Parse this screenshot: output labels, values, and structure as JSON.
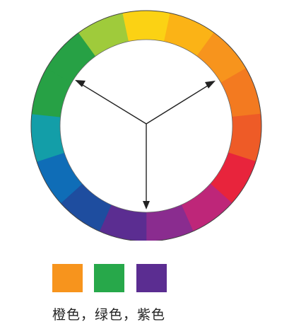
{
  "wheel": {
    "segments": [
      {
        "name": "yellow",
        "color": "#fbd214"
      },
      {
        "name": "yellow-orange",
        "color": "#fbb316"
      },
      {
        "name": "light-orange",
        "color": "#f7941d"
      },
      {
        "name": "orange",
        "color": "#f37a20"
      },
      {
        "name": "red-orange",
        "color": "#ee5b27"
      },
      {
        "name": "red",
        "color": "#e8243c"
      },
      {
        "name": "red-violet",
        "color": "#be2679"
      },
      {
        "name": "violet",
        "color": "#8a2c8f"
      },
      {
        "name": "purple",
        "color": "#5b2d91"
      },
      {
        "name": "blue-violet",
        "color": "#1e4d9f"
      },
      {
        "name": "blue",
        "color": "#0f6db7"
      },
      {
        "name": "blue-green",
        "color": "#139ea8"
      },
      {
        "name": "green",
        "color": "#27a145"
      },
      {
        "name": "green",
        "color": "#27a145"
      },
      {
        "name": "yellow-green",
        "color": "#9fcb3b"
      }
    ],
    "arrow_color": "#222222"
  },
  "swatches": [
    {
      "name": "orange",
      "color": "#f7941d"
    },
    {
      "name": "green",
      "color": "#27a84a"
    },
    {
      "name": "purple",
      "color": "#5b2d91"
    }
  ],
  "caption": "橙色，绿色，紫色"
}
